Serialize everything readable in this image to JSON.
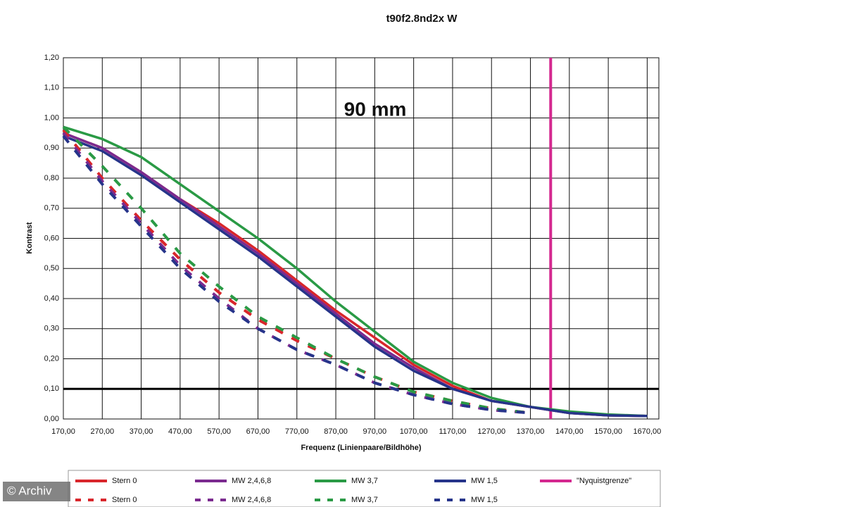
{
  "chart_data": {
    "type": "line",
    "title": "t90f2.8nd2x W",
    "annotation": "90 mm",
    "xlabel": "Frequenz (Linienpaare/Bildhöhe)",
    "ylabel": "Kontrast",
    "watermark": "© Archiv",
    "x": [
      170,
      270,
      370,
      470,
      570,
      670,
      770,
      870,
      970,
      1070,
      1170,
      1270,
      1370,
      1470,
      1570,
      1670
    ],
    "series": [
      {
        "name": "Stern 0",
        "color": "#d9262b",
        "dashed": false,
        "values": [
          0.95,
          0.9,
          0.82,
          0.73,
          0.65,
          0.56,
          0.46,
          0.36,
          0.27,
          0.18,
          0.11,
          0.06,
          0.04,
          0.02,
          0.012,
          0.01
        ]
      },
      {
        "name": "MW 2,4,6,8",
        "color": "#7b2a8f",
        "dashed": false,
        "values": [
          0.95,
          0.9,
          0.82,
          0.73,
          0.64,
          0.55,
          0.45,
          0.35,
          0.25,
          0.17,
          0.1,
          0.06,
          0.04,
          0.02,
          0.012,
          0.01
        ]
      },
      {
        "name": "MW 3,7",
        "color": "#2a9a45",
        "dashed": false,
        "values": [
          0.97,
          0.93,
          0.87,
          0.78,
          0.69,
          0.6,
          0.5,
          0.39,
          0.29,
          0.19,
          0.12,
          0.07,
          0.04,
          0.025,
          0.015,
          0.01
        ]
      },
      {
        "name": "MW 1,5",
        "color": "#26348a",
        "dashed": false,
        "values": [
          0.94,
          0.89,
          0.81,
          0.72,
          0.63,
          0.54,
          0.44,
          0.34,
          0.24,
          0.16,
          0.1,
          0.06,
          0.04,
          0.02,
          0.012,
          0.01
        ]
      },
      {
        "name": "Stern 0",
        "color": "#d9262b",
        "dashed": true,
        "values": [
          0.96,
          0.8,
          0.66,
          0.53,
          0.42,
          0.33,
          0.26,
          0.2,
          0.14,
          0.09,
          0.06,
          0.035,
          0.02,
          null,
          null,
          null
        ]
      },
      {
        "name": "MW 2,4,6,8",
        "color": "#7b2a8f",
        "dashed": true,
        "values": [
          0.95,
          0.79,
          0.65,
          0.51,
          0.4,
          0.3,
          0.23,
          0.18,
          0.12,
          0.08,
          0.05,
          0.03,
          0.02,
          null,
          null,
          null
        ]
      },
      {
        "name": "MW 3,7",
        "color": "#2a9a45",
        "dashed": true,
        "values": [
          0.97,
          0.84,
          0.7,
          0.55,
          0.44,
          0.34,
          0.27,
          0.2,
          0.14,
          0.09,
          0.06,
          0.035,
          0.02,
          null,
          null,
          null
        ]
      },
      {
        "name": "MW 1,5",
        "color": "#26348a",
        "dashed": true,
        "values": [
          0.94,
          0.78,
          0.64,
          0.5,
          0.39,
          0.3,
          0.23,
          0.18,
          0.12,
          0.08,
          0.05,
          0.03,
          0.02,
          null,
          null,
          null
        ]
      }
    ],
    "nyquist": {
      "name": "\"Nyquistgrenze\"",
      "color": "#d4288f",
      "value": 1422
    },
    "reference_line": 0.1,
    "xlim": [
      170,
      1700
    ],
    "ylim": [
      0,
      1.2
    ],
    "xticks": [
      {
        "value": 170,
        "label": "170,00"
      },
      {
        "value": 270,
        "label": "270,00"
      },
      {
        "value": 370,
        "label": "370,00"
      },
      {
        "value": 470,
        "label": "470,00"
      },
      {
        "value": 570,
        "label": "570,00"
      },
      {
        "value": 670,
        "label": "670,00"
      },
      {
        "value": 770,
        "label": "770,00"
      },
      {
        "value": 870,
        "label": "870,00"
      },
      {
        "value": 970,
        "label": "970,00"
      },
      {
        "value": 1070,
        "label": "1070,00"
      },
      {
        "value": 1170,
        "label": "1170,00"
      },
      {
        "value": 1270,
        "label": "1270,00"
      },
      {
        "value": 1370,
        "label": "1370,00"
      },
      {
        "value": 1470,
        "label": "1470,00"
      },
      {
        "value": 1570,
        "label": "1570,00"
      },
      {
        "value": 1670,
        "label": "1670,00"
      }
    ],
    "yticks": [
      {
        "value": 0,
        "label": "0,00"
      },
      {
        "value": 0.1,
        "label": "0,10"
      },
      {
        "value": 0.2,
        "label": "0,20"
      },
      {
        "value": 0.3,
        "label": "0,30"
      },
      {
        "value": 0.4,
        "label": "0,40"
      },
      {
        "value": 0.5,
        "label": "0,50"
      },
      {
        "value": 0.6,
        "label": "0,60"
      },
      {
        "value": 0.7,
        "label": "0,70"
      },
      {
        "value": 0.8,
        "label": "0,80"
      },
      {
        "value": 0.9,
        "label": "0,90"
      },
      {
        "value": 1.0,
        "label": "1,00"
      },
      {
        "value": 1.1,
        "label": "1,10"
      },
      {
        "value": 1.2,
        "label": "1,20"
      }
    ],
    "grid": true
  }
}
